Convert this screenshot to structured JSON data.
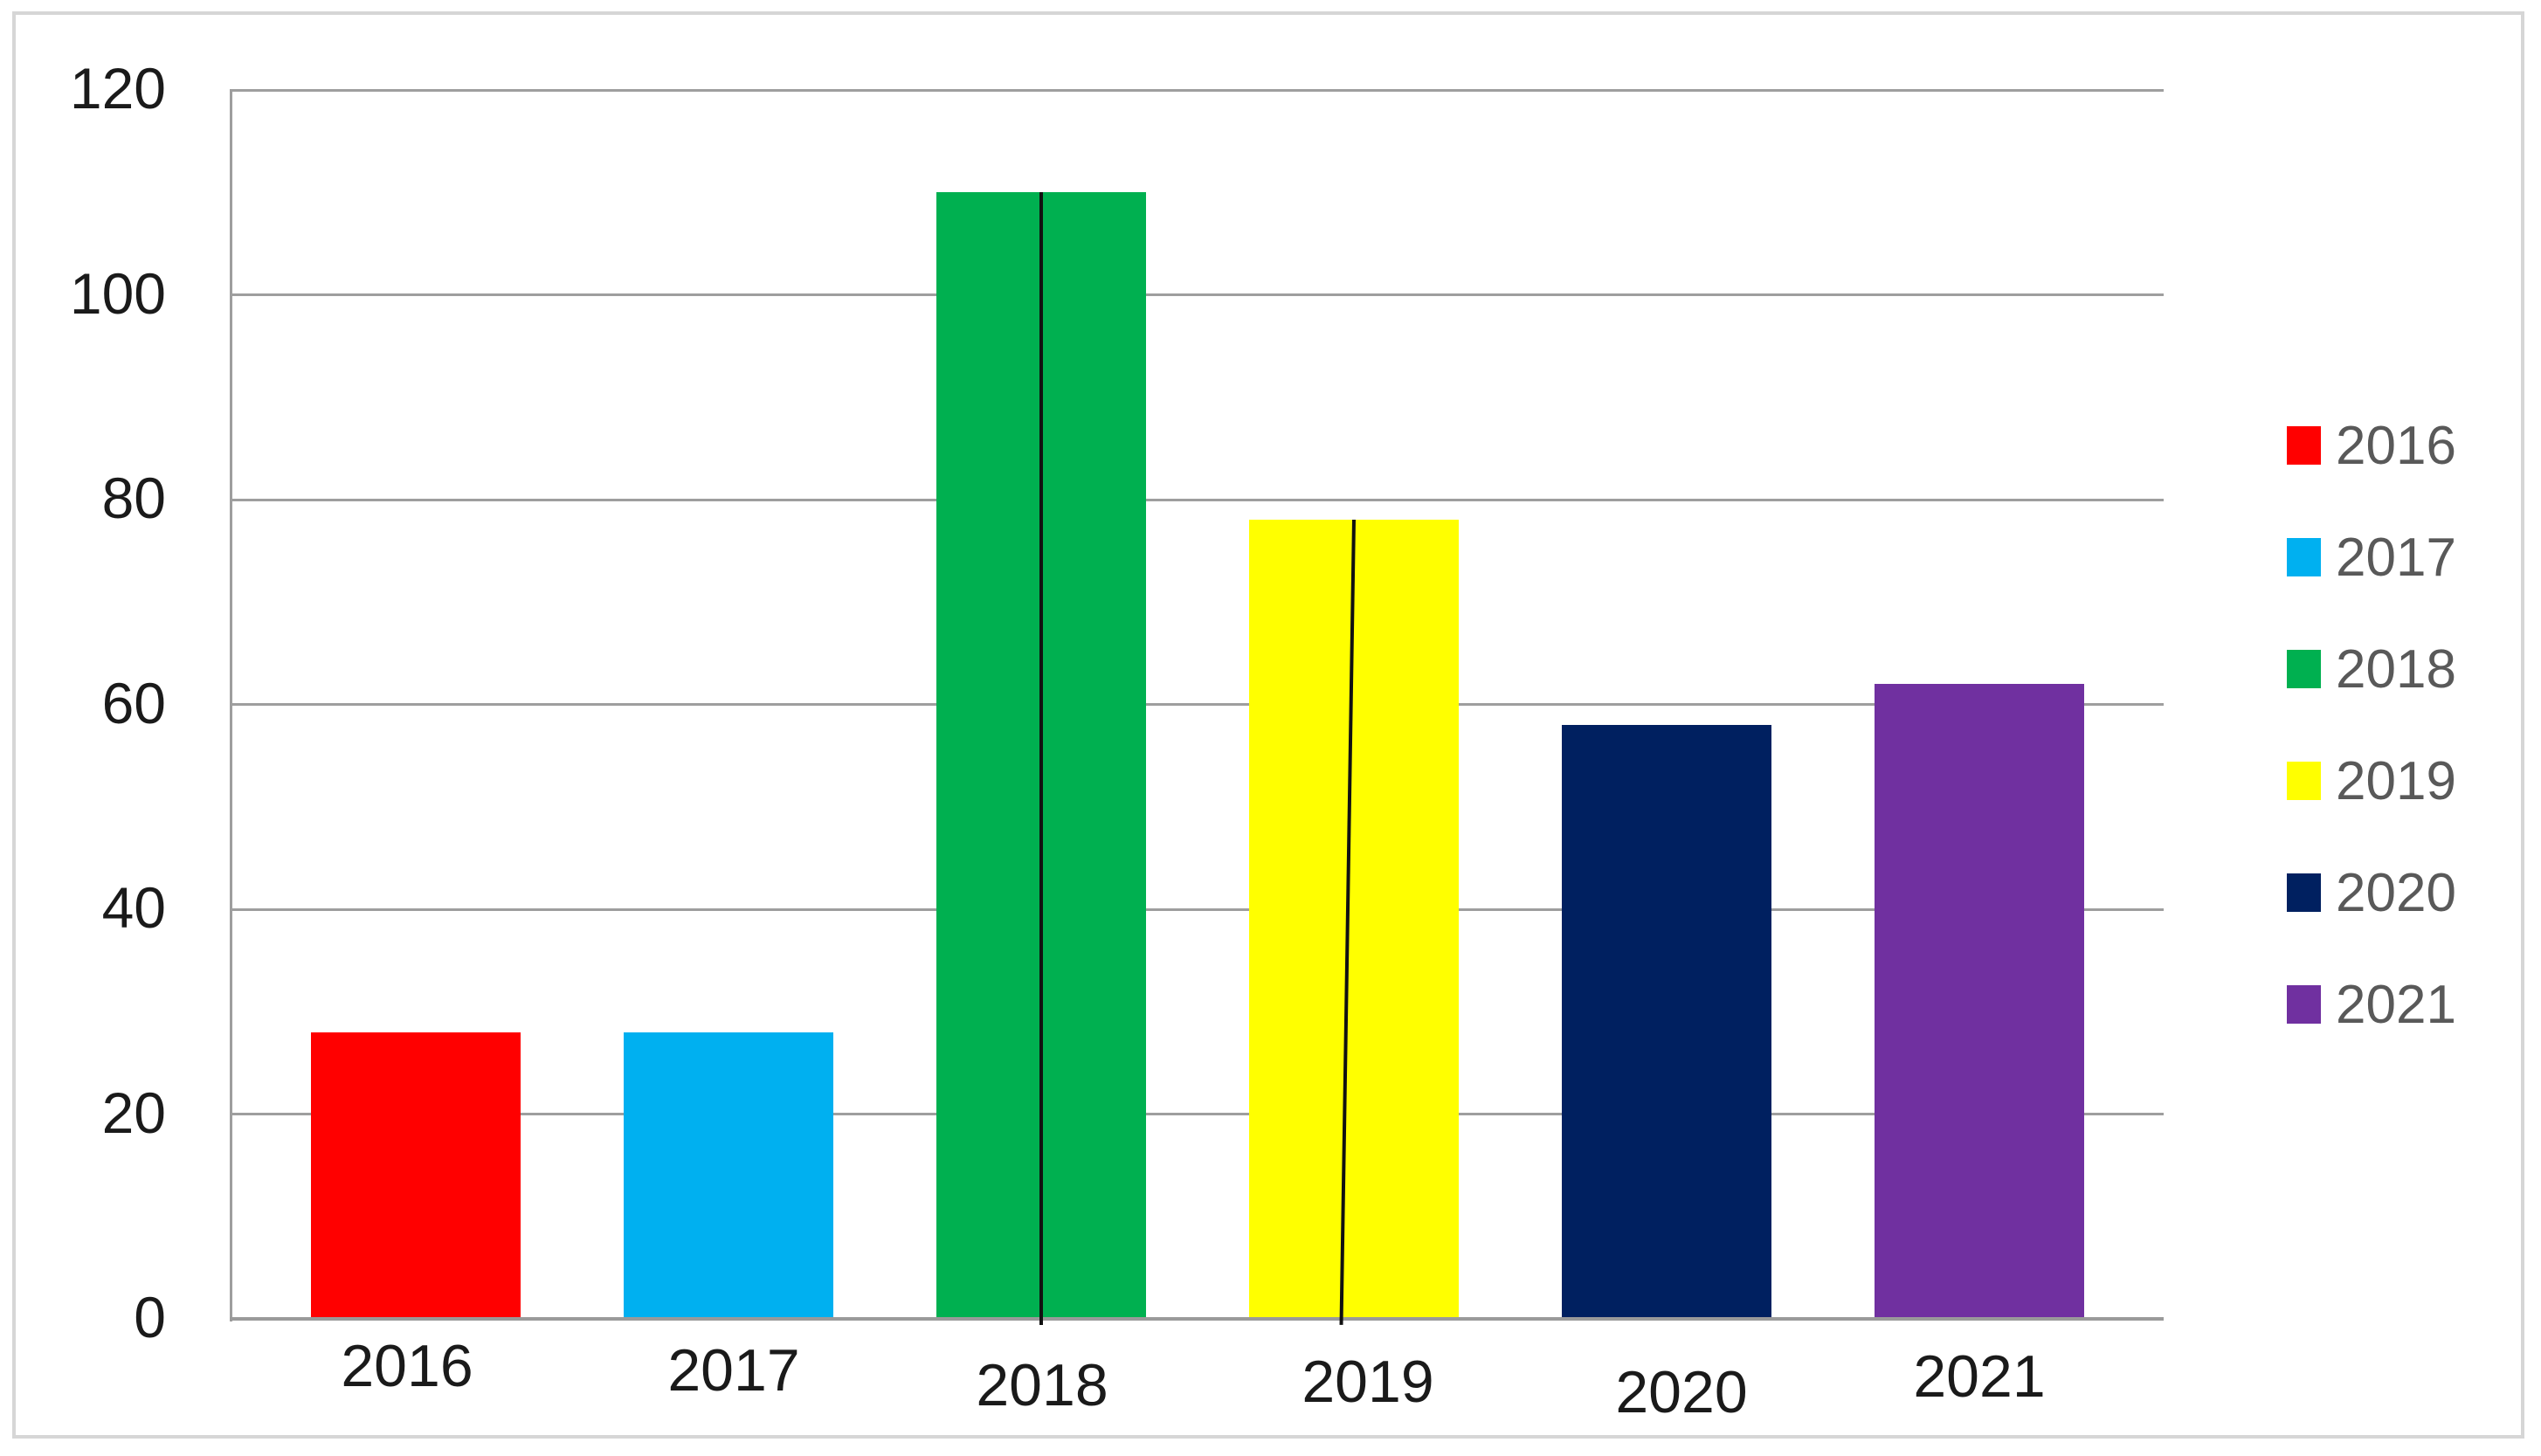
{
  "chart_data": {
    "type": "bar",
    "title": "",
    "xlabel": "",
    "ylabel": "",
    "categories": [
      "2016",
      "2017",
      "2018",
      "2019",
      "2020",
      "2021"
    ],
    "values": [
      28,
      28,
      110,
      78,
      58,
      62
    ],
    "bar_colors": [
      "#FF0000",
      "#00B0F0",
      "#00B050",
      "#FFFF00",
      "#002060",
      "#7030A0"
    ],
    "ylim": [
      0,
      120
    ],
    "yticks": [
      0,
      20,
      40,
      60,
      80,
      100,
      120
    ],
    "grid": true,
    "legend_position": "right",
    "legend_entries": [
      {
        "label": "2016",
        "color": "#FF0000"
      },
      {
        "label": "2017",
        "color": "#00B0F0"
      },
      {
        "label": "2018",
        "color": "#00B050"
      },
      {
        "label": "2019",
        "color": "#FFFF00"
      },
      {
        "label": "2020",
        "color": "#002060"
      },
      {
        "label": "2021",
        "color": "#7030A0"
      }
    ],
    "annotations": [
      {
        "category": "2018",
        "type": "vertical-line-on-bar",
        "tilt_deg": 0,
        "color": "#111111"
      },
      {
        "category": "2019",
        "type": "vertical-line-on-bar",
        "tilt_deg": 0.9,
        "color": "#111111"
      }
    ]
  },
  "colors": {
    "background": "#FFFFFF",
    "frame_border": "#D6D6D6",
    "gridline": "#9E9E9E",
    "axis_text": "#1A1A1A",
    "legend_text": "#595959"
  }
}
